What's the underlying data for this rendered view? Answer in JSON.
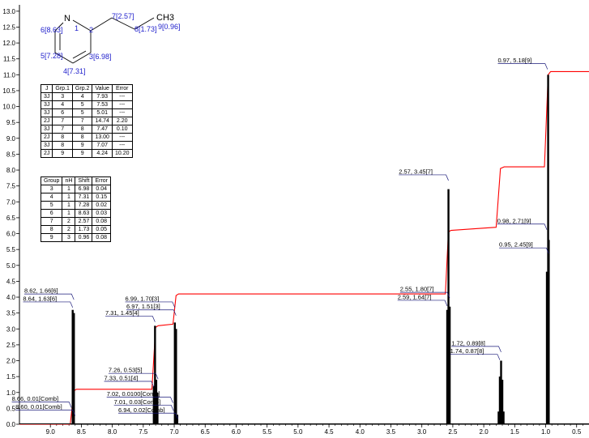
{
  "chart_data": {
    "type": "line",
    "title": "",
    "xlabel": "",
    "ylabel": "",
    "xlim": [
      9.5,
      0.3
    ],
    "ylim": [
      0,
      13.2
    ],
    "x_ticks": [
      "9.0",
      "8.5",
      "8.0",
      "7.5",
      "7.0",
      "6.5",
      "6.0",
      "5.5",
      "5.0",
      "4.5",
      "4.0",
      "3.5",
      "3.0",
      "2.5",
      "2.0",
      "1.5",
      "1.0",
      "0.5"
    ],
    "y_ticks": [
      "0.0",
      "0.5",
      "1.0",
      "1.5",
      "2.0",
      "2.5",
      "3.0",
      "3.5",
      "4.0",
      "4.5",
      "5.0",
      "5.5",
      "6.0",
      "6.5",
      "7.0",
      "7.5",
      "8.0",
      "8.5",
      "9.0",
      "9.5",
      "10.0",
      "10.5",
      "11.0",
      "11.5",
      "12.0",
      "12.5",
      "13.0"
    ],
    "spectrum_peaks": [
      {
        "x": 8.64,
        "y": 3.6
      },
      {
        "x": 8.62,
        "y": 3.5
      },
      {
        "x": 7.33,
        "y": 1.2
      },
      {
        "x": 7.31,
        "y": 3.1
      },
      {
        "x": 7.29,
        "y": 1.4
      },
      {
        "x": 7.27,
        "y": 1.0
      },
      {
        "x": 6.99,
        "y": 3.2
      },
      {
        "x": 6.97,
        "y": 3.0
      },
      {
        "x": 6.95,
        "y": 0.3
      },
      {
        "x": 2.59,
        "y": 3.6
      },
      {
        "x": 2.57,
        "y": 7.4
      },
      {
        "x": 2.55,
        "y": 3.7
      },
      {
        "x": 1.76,
        "y": 0.4
      },
      {
        "x": 1.74,
        "y": 1.5
      },
      {
        "x": 1.72,
        "y": 2.0
      },
      {
        "x": 1.7,
        "y": 1.4
      },
      {
        "x": 1.68,
        "y": 0.4
      },
      {
        "x": 0.98,
        "y": 4.8
      },
      {
        "x": 0.96,
        "y": 11.0
      },
      {
        "x": 0.95,
        "y": 5.8
      }
    ],
    "integral_curve": {
      "x": [
        9.5,
        8.68,
        8.62,
        8.58,
        7.36,
        7.3,
        7.26,
        7.02,
        6.97,
        6.93,
        2.62,
        2.57,
        2.53,
        1.8,
        1.73,
        1.67,
        1.02,
        0.96,
        0.92,
        0.3
      ],
      "y": [
        0.0,
        0.0,
        1.05,
        1.1,
        1.1,
        3.05,
        3.1,
        3.15,
        4.05,
        4.1,
        4.1,
        6.05,
        6.1,
        6.2,
        8.05,
        8.1,
        8.1,
        11.0,
        11.1,
        11.1
      ]
    },
    "peak_labels": [
      {
        "text": "8.62, 1.66[6]",
        "x": 8.62,
        "y": 4.1
      },
      {
        "text": "8.64, 1.63[6]",
        "x": 8.64,
        "y": 3.85
      },
      {
        "text": "8.66, 0.01[Comb]",
        "x": 8.66,
        "y": 0.7
      },
      {
        "text": "8.60, 0.01[Comb]",
        "x": 8.6,
        "y": 0.45
      },
      {
        "text": "6.99, 1.70[3]",
        "x": 6.99,
        "y": 3.85
      },
      {
        "text": "6.97, 1.51[3]",
        "x": 6.97,
        "y": 3.6
      },
      {
        "text": "7.31, 1.45[4]",
        "x": 7.31,
        "y": 3.4
      },
      {
        "text": "7.26, 0.53[5]",
        "x": 7.26,
        "y": 1.6
      },
      {
        "text": "7.33, 0.51[4]",
        "x": 7.33,
        "y": 1.35
      },
      {
        "text": "7.02, 0.0100[Comb]",
        "x": 7.02,
        "y": 0.85
      },
      {
        "text": "7.01, 0.03[Comb]",
        "x": 7.01,
        "y": 0.6
      },
      {
        "text": "6.94, 0.02[Comb]",
        "x": 6.94,
        "y": 0.35
      },
      {
        "text": "2.57, 3.45[7]",
        "x": 2.57,
        "y": 7.85
      },
      {
        "text": "2.55, 1.80[7]",
        "x": 2.55,
        "y": 4.15
      },
      {
        "text": "2.59, 1.64[7]",
        "x": 2.59,
        "y": 3.9
      },
      {
        "text": "1.72, 0.89[8]",
        "x": 1.72,
        "y": 2.45
      },
      {
        "text": "1.74, 0.87[8]",
        "x": 1.74,
        "y": 2.2
      },
      {
        "text": "0.97, 5.18[9]",
        "x": 0.97,
        "y": 11.35
      },
      {
        "text": "0.98, 2.71[9]",
        "x": 0.98,
        "y": 6.3
      },
      {
        "text": "0.95, 2.45[9]",
        "x": 0.95,
        "y": 5.55
      }
    ]
  },
  "molecule": {
    "n_label": "N",
    "n_locant": "1",
    "c2_locant": "2",
    "ch3_label": "CH3",
    "atoms": [
      {
        "text": "6[8.63]"
      },
      {
        "text": "5[7.28]"
      },
      {
        "text": "4[7.31]"
      },
      {
        "text": "3[6.98]"
      },
      {
        "text": "7[2.57]"
      },
      {
        "text": "8[1.73]"
      },
      {
        "text": "9[0.96]"
      }
    ]
  },
  "coupling_table": {
    "headers": [
      "J",
      "Grp.1",
      "Grp.2",
      "Value",
      "Error"
    ],
    "rows": [
      [
        "3J",
        "3",
        "4",
        "7.93",
        "---"
      ],
      [
        "3J",
        "4",
        "5",
        "7.53",
        "---"
      ],
      [
        "3J",
        "6",
        "5",
        "5.01",
        "---"
      ],
      [
        "2J",
        "7",
        "7",
        "14.74",
        "2.20"
      ],
      [
        "3J",
        "7",
        "8",
        "7.47",
        "0.10"
      ],
      [
        "2J",
        "8",
        "8",
        "13.00",
        "---"
      ],
      [
        "3J",
        "8",
        "9",
        "7.07",
        "---"
      ],
      [
        "2J",
        "9",
        "9",
        "4.24",
        "10.20"
      ]
    ]
  },
  "group_table": {
    "headers": [
      "Group",
      "nH",
      "Shift",
      "Error"
    ],
    "rows": [
      [
        "3",
        "1",
        "6.98",
        "0.04"
      ],
      [
        "4",
        "1",
        "7.31",
        "0.15"
      ],
      [
        "5",
        "1",
        "7.28",
        "0.02"
      ],
      [
        "6",
        "1",
        "8.63",
        "0.03"
      ],
      [
        "7",
        "2",
        "2.57",
        "0.08"
      ],
      [
        "8",
        "2",
        "1.73",
        "0.05"
      ],
      [
        "9",
        "3",
        "0.96",
        "0.08"
      ]
    ]
  },
  "colors": {
    "spectrum": "#000000",
    "integral": "#ff0000",
    "atom_labels": "#2222cc",
    "label_connector": "#1a1a7a"
  }
}
